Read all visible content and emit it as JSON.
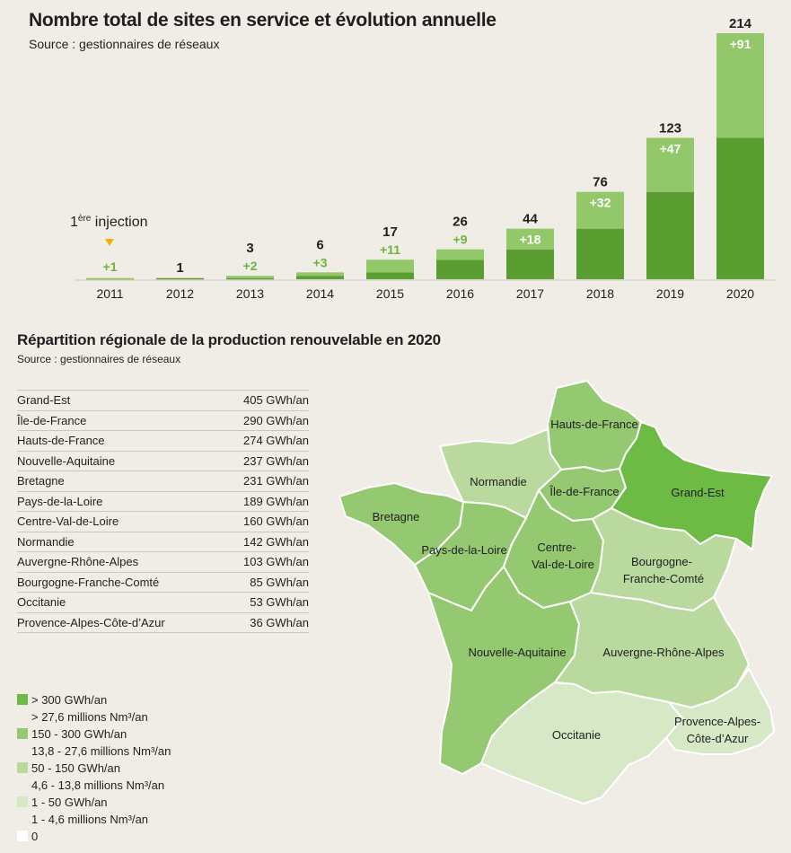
{
  "top_chart": {
    "title": "Nombre total de sites en service et évolution annuelle",
    "source": "Source : gestionnaires de réseaux",
    "annotation_first": "1",
    "annotation_sup": "ère",
    "annotation_rest": " injection"
  },
  "colors": {
    "dark_green": "#5a9e32",
    "light_green": "#92c86a",
    "increment_text_green": "#6cb33f",
    "marker_yellow": "#f0b400",
    "background": "#efede6"
  },
  "chart_data": {
    "type": "bar",
    "title": "Nombre total de sites en service et évolution annuelle",
    "categories": [
      "2011",
      "2012",
      "2013",
      "2014",
      "2015",
      "2016",
      "2017",
      "2018",
      "2019",
      "2020"
    ],
    "totals": [
      "",
      "1",
      "3",
      "6",
      "17",
      "26",
      "44",
      "76",
      "123",
      "214"
    ],
    "increments": [
      "+1",
      "",
      "+2",
      "+3",
      "+11",
      "+9",
      "+18",
      "+32",
      "+47",
      "+91"
    ],
    "series": [
      {
        "values": [
          0,
          1,
          1,
          3,
          6,
          17,
          26,
          44,
          76,
          123
        ]
      },
      {
        "values": [
          1,
          0,
          2,
          3,
          11,
          9,
          18,
          32,
          47,
          91
        ]
      }
    ],
    "ylim": [
      0,
      214
    ]
  },
  "region_section": {
    "title": "Répartition régionale de la production renouvelable en 2020",
    "source": "Source : gestionnaires de réseaux"
  },
  "regions": [
    {
      "name": "Grand-Est",
      "value": "405 GWh/an"
    },
    {
      "name": "Île-de-France",
      "value": "290 GWh/an"
    },
    {
      "name": "Hauts-de-France",
      "value": "274 GWh/an"
    },
    {
      "name": "Nouvelle-Aquitaine",
      "value": "237 GWh/an"
    },
    {
      "name": "Bretagne",
      "value": "231 GWh/an"
    },
    {
      "name": "Pays-de-la-Loire",
      "value": "189 GWh/an"
    },
    {
      "name": "Centre-Val-de-Loire",
      "value": "160 GWh/an"
    },
    {
      "name": "Normandie",
      "value": "142 GWh/an"
    },
    {
      "name": "Auvergne-Rhône-Alpes",
      "value": "103 GWh/an"
    },
    {
      "name": "Bourgogne-Franche-Comté",
      "value": "85 GWh/an"
    },
    {
      "name": "Occitanie",
      "value": "53 GWh/an"
    },
    {
      "name": "Provence-Alpes-Côte-d’Azur",
      "value": "36 GWh/an"
    }
  ],
  "legend": [
    {
      "line1": "> 300 GWh/an",
      "line2": "> 27,6 millions Nm³/an",
      "color": "#6dba45"
    },
    {
      "line1": "150 - 300 GWh/an",
      "line2": "13,8 - 27,6 millions Nm³/an",
      "color": "#94c971"
    },
    {
      "line1": "50 - 150 GWh/an",
      "line2": "4,6 - 13,8 millions Nm³/an",
      "color": "#b9d99f"
    },
    {
      "line1": "1 - 50 GWh/an",
      "line2": "1 - 4,6 millions Nm³/an",
      "color": "#d6e8c6"
    },
    {
      "line1": "0",
      "line2": "",
      "color": "#ffffff"
    }
  ],
  "map_labels": {
    "hauts_de_france": "Hauts-de-France",
    "normandie": "Normandie",
    "ile_de_france": "Île-de-France",
    "grand_est": "Grand-Est",
    "bretagne": "Bretagne",
    "pays_de_la_loire": "Pays-de-la-Loire",
    "centre_1": "Centre-",
    "centre_2": "Val-de-Loire",
    "bourgogne_1": "Bourgogne-",
    "bourgogne_2": "Franche-Comté",
    "nouvelle_aquitaine": "Nouvelle-Aquitaine",
    "auvergne": "Auvergne-Rhône-Alpes",
    "occitanie": "Occitanie",
    "paca_1": "Provence-Alpes-",
    "paca_2": "Côte-d’Azur"
  }
}
